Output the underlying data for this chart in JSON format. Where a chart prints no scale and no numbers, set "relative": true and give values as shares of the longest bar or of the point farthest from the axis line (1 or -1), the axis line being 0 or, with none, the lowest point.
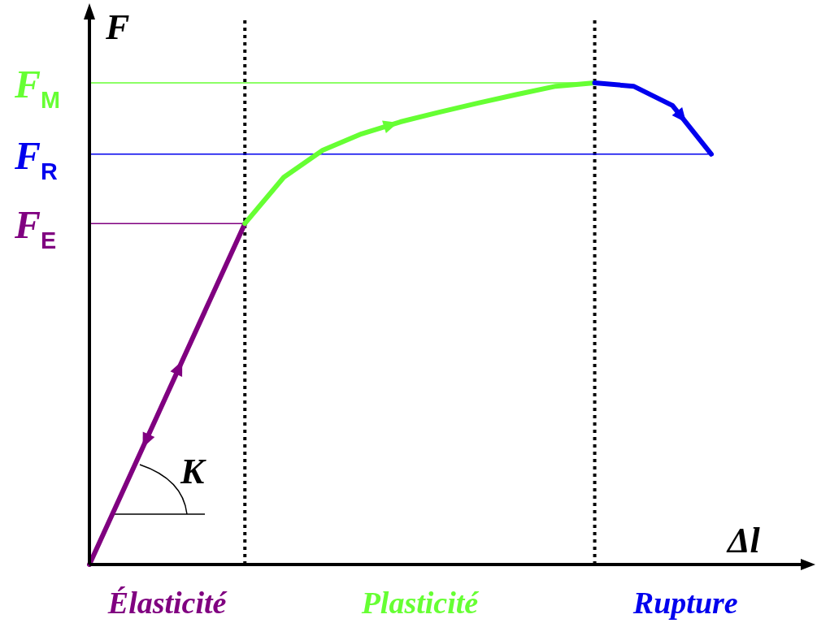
{
  "chart_data": {
    "type": "line",
    "relative": true,
    "xlabel": "Δl",
    "ylabel": "F",
    "categories": [
      null,
      null,
      null,
      null,
      null,
      null,
      null,
      null,
      null,
      null,
      null,
      null,
      null,
      null,
      null,
      null,
      null
    ],
    "series": [
      {
        "color": "#800080",
        "values": [
          0,
          0.177,
          0.354,
          0.531,
          0.708,
          null,
          null,
          null,
          null,
          null,
          null,
          null,
          null,
          null,
          null,
          null,
          null
        ]
      },
      {
        "color": "#66ff33",
        "values": [
          null,
          null,
          null,
          null,
          0.708,
          0.804,
          0.86,
          0.894,
          0.919,
          0.939,
          0.958,
          0.976,
          0.993,
          1,
          null,
          null,
          null
        ]
      },
      {
        "color": "#0000ee",
        "values": [
          null,
          null,
          null,
          null,
          null,
          null,
          null,
          null,
          null,
          null,
          null,
          null,
          null,
          1,
          0.993,
          0.953,
          0.852
        ]
      }
    ],
    "ref_lines": [
      {
        "axis": "y",
        "value": 1,
        "label": "F$_{M}$",
        "color": "#66ff33"
      },
      {
        "axis": "y",
        "value": 0.852,
        "label": "F$_{R}$",
        "color": "#0000ee"
      },
      {
        "axis": "y",
        "value": 0.708,
        "label": "F$_{E}$",
        "color": "#800080"
      }
    ],
    "annotations": [
      "Élasticité",
      "Plasticité",
      "Rupture",
      "K"
    ],
    "line_style": "solid",
    "marker": "none"
  }
}
